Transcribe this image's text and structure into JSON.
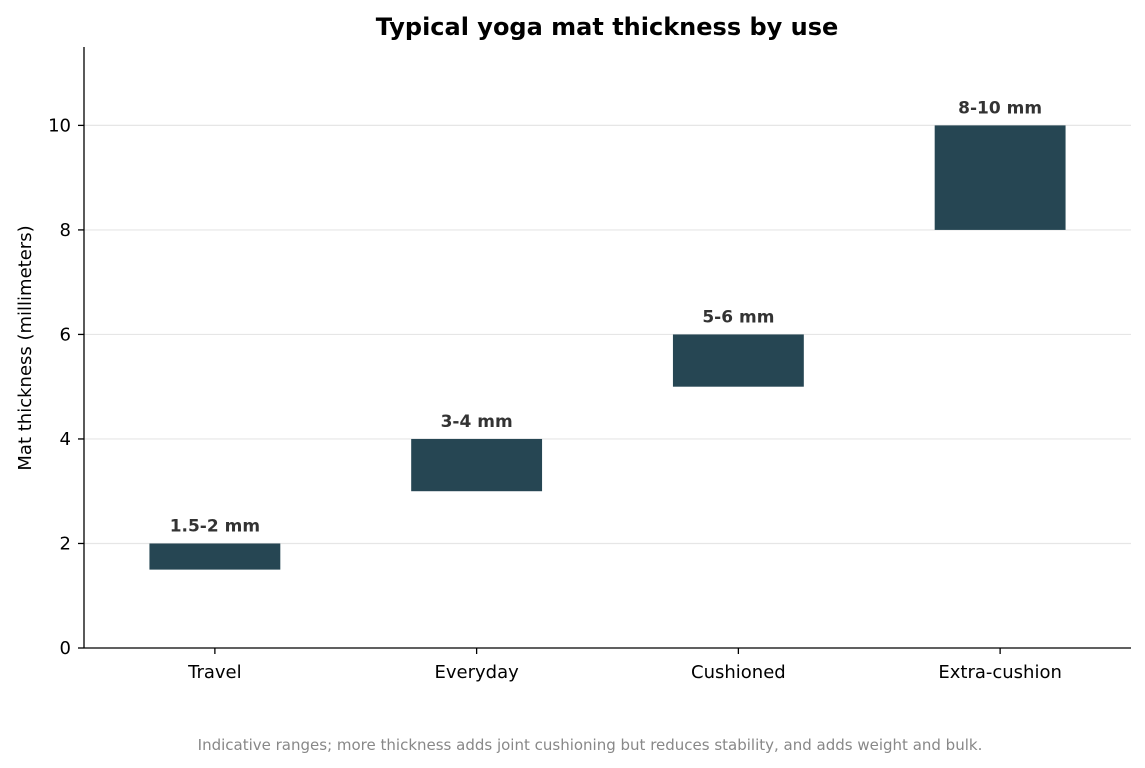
{
  "chart_data": {
    "type": "bar",
    "title": "Typical yoga mat thickness by use",
    "xlabel": "",
    "ylabel": "Mat thickness (millimeters)",
    "categories": [
      "Travel",
      "Everyday",
      "Cushioned",
      "Extra-cushion"
    ],
    "ranges": [
      {
        "low": 1.5,
        "high": 2,
        "label": "1.5-2 mm"
      },
      {
        "low": 3,
        "high": 4,
        "label": "3-4 mm"
      },
      {
        "low": 5,
        "high": 6,
        "label": "5-6 mm"
      },
      {
        "low": 8,
        "high": 10,
        "label": "8-10 mm"
      }
    ],
    "ylim": [
      0,
      11.5
    ],
    "yticks": [
      0,
      2,
      4,
      6,
      8,
      10
    ],
    "grid": "horizontal",
    "bar_color": "#264653",
    "grid_color": "#e6e6e6",
    "footnote": "Indicative ranges; more thickness adds joint cushioning but reduces stability, and adds weight and bulk."
  }
}
